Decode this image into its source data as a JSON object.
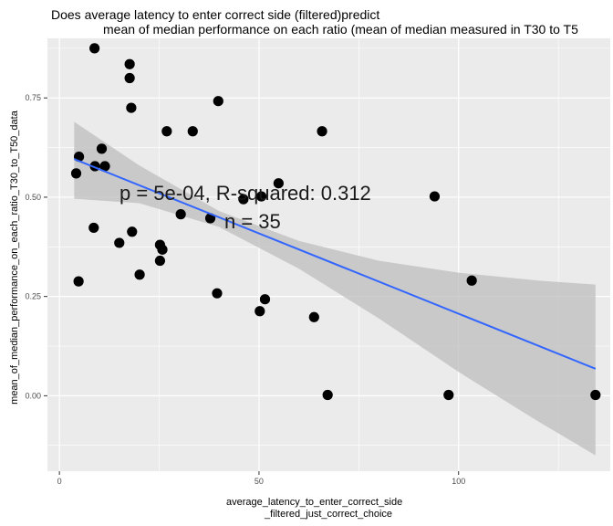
{
  "chart_data": {
    "type": "scatter",
    "title_line1": "Does average latency to enter correct side (filtered)predict",
    "title_line2": "mean of median performance on each ratio (mean of median measured in T30 to T5",
    "xlabel_line1": "average_latency_to_enter_correct_side",
    "xlabel_line2": "_filtered_just_correct_choice",
    "ylabel": "mean_of_median_performance_on_each_ratio_T30_to_T50_data",
    "xlim": [
      -3,
      138
    ],
    "ylim": [
      -0.19,
      0.9
    ],
    "x_ticks": [
      0,
      50,
      100
    ],
    "y_ticks": [
      0.0,
      0.25,
      0.5,
      0.75
    ],
    "x_tick_labels": [
      "0",
      "50",
      "100"
    ],
    "y_tick_labels": [
      "0.00",
      "0.25",
      "0.50",
      "0.75"
    ],
    "grid": true,
    "points": [
      {
        "x": 8.8,
        "y": 0.875
      },
      {
        "x": 17.6,
        "y": 0.835
      },
      {
        "x": 17.6,
        "y": 0.8
      },
      {
        "x": 39.8,
        "y": 0.742
      },
      {
        "x": 18.0,
        "y": 0.725
      },
      {
        "x": 26.9,
        "y": 0.666
      },
      {
        "x": 33.4,
        "y": 0.666
      },
      {
        "x": 65.8,
        "y": 0.666
      },
      {
        "x": 10.6,
        "y": 0.622
      },
      {
        "x": 4.9,
        "y": 0.602
      },
      {
        "x": 8.9,
        "y": 0.578
      },
      {
        "x": 11.4,
        "y": 0.578
      },
      {
        "x": 4.2,
        "y": 0.56
      },
      {
        "x": 54.9,
        "y": 0.535
      },
      {
        "x": 94.0,
        "y": 0.502
      },
      {
        "x": 50.6,
        "y": 0.502
      },
      {
        "x": 46.1,
        "y": 0.495
      },
      {
        "x": 30.4,
        "y": 0.457
      },
      {
        "x": 37.8,
        "y": 0.447
      },
      {
        "x": 8.6,
        "y": 0.423
      },
      {
        "x": 18.2,
        "y": 0.413
      },
      {
        "x": 15.0,
        "y": 0.385
      },
      {
        "x": 25.2,
        "y": 0.38
      },
      {
        "x": 25.8,
        "y": 0.368
      },
      {
        "x": 25.2,
        "y": 0.34
      },
      {
        "x": 20.1,
        "y": 0.305
      },
      {
        "x": 4.8,
        "y": 0.288
      },
      {
        "x": 103.3,
        "y": 0.29
      },
      {
        "x": 39.5,
        "y": 0.258
      },
      {
        "x": 51.5,
        "y": 0.243
      },
      {
        "x": 50.2,
        "y": 0.213
      },
      {
        "x": 63.8,
        "y": 0.198
      },
      {
        "x": 67.2,
        "y": 0.002
      },
      {
        "x": 97.5,
        "y": 0.002
      },
      {
        "x": 134.3,
        "y": 0.002
      }
    ],
    "regression": {
      "x": [
        3.7,
        134.3
      ],
      "y": [
        0.596,
        0.068
      ],
      "color": "#3366FF"
    },
    "confidence_band": {
      "x": [
        3.7,
        20,
        40,
        60,
        80,
        100,
        120,
        134.3
      ],
      "upper": [
        0.69,
        0.58,
        0.465,
        0.39,
        0.34,
        0.31,
        0.29,
        0.28
      ],
      "lower": [
        0.496,
        0.485,
        0.425,
        0.32,
        0.195,
        0.06,
        -0.065,
        -0.15
      ]
    },
    "annotation_line1": "p = 5e-04, R-squared:  0.312",
    "annotation_line2": "n = 35",
    "colors": {
      "panel": "#EBEBEB",
      "grid": "#FFFFFF",
      "point": "#000000",
      "band": "#BEBEBE"
    }
  }
}
